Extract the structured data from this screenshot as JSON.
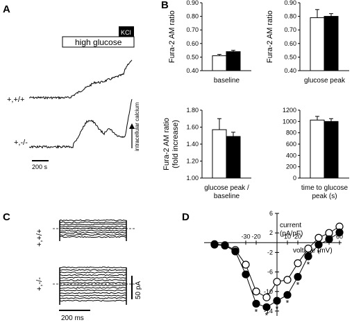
{
  "panels": {
    "A": {
      "letter": "A",
      "stimulus_label": "high glucose",
      "kcl_label": "KCl",
      "trace_labels": [
        "+,+/+",
        "+,-/-"
      ],
      "scale_label": "200 s",
      "arrow_label": "intracellular calcium"
    },
    "B": {
      "letter": "B"
    },
    "C": {
      "letter": "C",
      "trace_labels": [
        "+,+/+",
        "+,-/-"
      ],
      "time_scale_label": "200 ms",
      "current_scale_label": "50 pA"
    },
    "D": {
      "letter": "D"
    }
  },
  "colors": {
    "wildtype": "#ffffff",
    "knockout": "#000000",
    "stroke": "#000000"
  },
  "chart_data": [
    {
      "type": "bar",
      "panel": "B1",
      "title": "",
      "ylabel": "Fura-2 AM ratio",
      "xlabel": "baseline",
      "ylim": [
        0.4,
        0.9
      ],
      "yticks": [
        "0.40",
        "0.50",
        "0.60",
        "0.70",
        "0.80",
        "0.90"
      ],
      "series": [
        {
          "fill": "white",
          "values": [
            0.51
          ],
          "errors": [
            0.01
          ]
        },
        {
          "fill": "black",
          "values": [
            0.54
          ],
          "errors": [
            0.01
          ]
        }
      ]
    },
    {
      "type": "bar",
      "panel": "B2",
      "title": "",
      "ylabel": "Fura-2 AM ratio",
      "xlabel": "glucose peak",
      "ylim": [
        0.4,
        0.9
      ],
      "yticks": [
        "0.40",
        "0.50",
        "0.60",
        "0.70",
        "0.80",
        "0.90"
      ],
      "series": [
        {
          "fill": "white",
          "values": [
            0.79
          ],
          "errors": [
            0.06
          ]
        },
        {
          "fill": "black",
          "values": [
            0.8
          ],
          "errors": [
            0.02
          ]
        }
      ]
    },
    {
      "type": "bar",
      "panel": "B3",
      "title": "",
      "ylabel": "Fura-2 AM ratio",
      "ylabel2": "(fold increase)",
      "xlabel": "glucose peak /",
      "xlabel2": "baseline",
      "ylim": [
        1.0,
        1.8
      ],
      "yticks": [
        "1.00",
        "1.20",
        "1.40",
        "1.60",
        "1.80"
      ],
      "series": [
        {
          "fill": "white",
          "values": [
            1.57
          ],
          "errors": [
            0.13
          ]
        },
        {
          "fill": "black",
          "values": [
            1.49
          ],
          "errors": [
            0.05
          ]
        }
      ]
    },
    {
      "type": "bar",
      "panel": "B4",
      "title": "",
      "ylabel": "",
      "xlabel": "time to glucose",
      "xlabel2": "peak (s)",
      "ylim": [
        0,
        1200
      ],
      "yticks": [
        "0",
        "200",
        "400",
        "600",
        "800",
        "1000",
        "1200"
      ],
      "series": [
        {
          "fill": "white",
          "values": [
            1025
          ],
          "errors": [
            65
          ]
        },
        {
          "fill": "black",
          "values": [
            1000
          ],
          "errors": [
            50
          ]
        }
      ]
    },
    {
      "type": "line",
      "panel": "D",
      "title": "",
      "xlabel": "voltage (mV)",
      "ylabel": "current",
      "ylabel2": "(pA/pF)",
      "xlim": [
        -70,
        62
      ],
      "ylim": [
        -15,
        6
      ],
      "xticks": [
        "-30",
        "-20",
        "10",
        "20",
        "50",
        "60"
      ],
      "yticks": [
        "6",
        "2",
        "-2",
        "-6",
        "-10",
        "-14"
      ],
      "x": [
        -60,
        -50,
        -40,
        -30,
        -20,
        -10,
        0,
        10,
        20,
        30,
        40,
        50,
        60
      ],
      "series": [
        {
          "fill": "white",
          "values": [
            -0.3,
            -0.5,
            -1.5,
            -4.5,
            -10.0,
            -11.2,
            -8.0,
            -7.6,
            -4.2,
            -1.2,
            1.0,
            2.0,
            3.3
          ]
        },
        {
          "fill": "black",
          "values": [
            -0.4,
            -0.6,
            -1.8,
            -6.5,
            -12.5,
            -13.2,
            -11.9,
            -10.7,
            -7.0,
            -2.8,
            -0.4,
            0.7,
            2.1
          ]
        }
      ],
      "significance_marker": "*",
      "significant_x": [
        -20,
        -10,
        0,
        10,
        20,
        30,
        40
      ]
    }
  ]
}
